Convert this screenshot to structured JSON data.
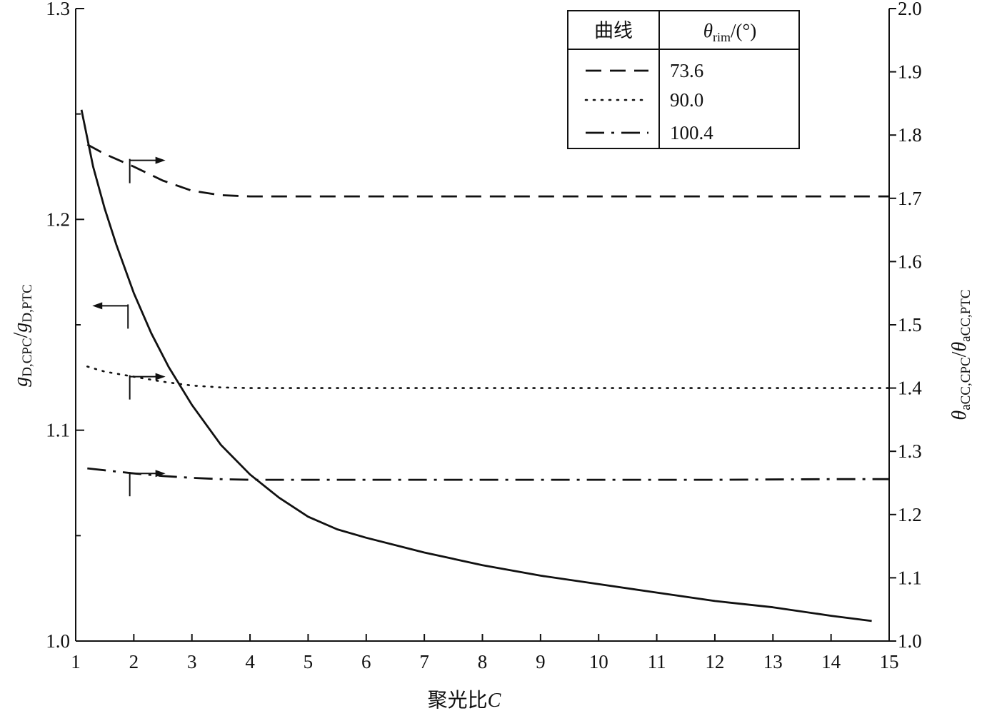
{
  "chart_data": {
    "type": "line",
    "xlabel": "聚光比C",
    "xlim": [
      1,
      15
    ],
    "x_ticks": [
      "1",
      "2",
      "3",
      "4",
      "5",
      "6",
      "7",
      "8",
      "9",
      "10",
      "11",
      "12",
      "13",
      "14",
      "15"
    ],
    "left_axis": {
      "label": "gD,CPC/gD,PTC",
      "ylim": [
        1.0,
        1.3
      ],
      "tick_labels": [
        "1.0",
        "1.1",
        "1.2",
        "1.3"
      ],
      "tick_values": [
        1.0,
        1.1,
        1.2,
        1.3
      ],
      "minor_values": [
        1.05,
        1.15,
        1.25
      ]
    },
    "right_axis": {
      "label": "θaCC,CPC/θaCC,PTC",
      "ylim": [
        1.0,
        2.0
      ],
      "tick_labels": [
        "1.0",
        "1.1",
        "1.2",
        "1.3",
        "1.4",
        "1.5",
        "1.6",
        "1.7",
        "1.8",
        "1.9",
        "2.0"
      ],
      "tick_values": [
        1.0,
        1.1,
        1.2,
        1.3,
        1.4,
        1.5,
        1.6,
        1.7,
        1.8,
        1.9,
        2.0
      ]
    },
    "legend": {
      "header_curve": "曲线",
      "header_theta": "θrim/(°)",
      "entries": [
        {
          "style": "dashed",
          "value": "73.6"
        },
        {
          "style": "dotted",
          "value": "90.0"
        },
        {
          "style": "dashdot",
          "value": "100.4"
        }
      ]
    },
    "series": [
      {
        "style": "solid",
        "axis": "left",
        "x": [
          1.1,
          1.3,
          1.5,
          1.7,
          2.0,
          2.3,
          2.6,
          3.0,
          3.5,
          4.0,
          4.5,
          5.0,
          5.5,
          6.0,
          7.0,
          8.0,
          9.0,
          10.0,
          11.0,
          12.0,
          13.0,
          14.0,
          14.7
        ],
        "y": [
          1.252,
          1.225,
          1.205,
          1.188,
          1.165,
          1.146,
          1.13,
          1.112,
          1.093,
          1.079,
          1.068,
          1.059,
          1.053,
          1.049,
          1.042,
          1.036,
          1.031,
          1.027,
          1.023,
          1.019,
          1.016,
          1.012,
          1.0095
        ]
      },
      {
        "style": "dashed",
        "axis": "right",
        "x": [
          1.2,
          1.5,
          2.0,
          2.5,
          3.0,
          3.5,
          4.0,
          5.0,
          6.0,
          8.0,
          10.0,
          12.0,
          14.0,
          15.0
        ],
        "y": [
          1.785,
          1.77,
          1.75,
          1.728,
          1.712,
          1.705,
          1.703,
          1.703,
          1.703,
          1.703,
          1.703,
          1.703,
          1.703,
          1.703
        ]
      },
      {
        "style": "dotted",
        "axis": "right",
        "x": [
          1.2,
          1.5,
          2.0,
          2.5,
          3.0,
          3.5,
          4.0,
          5.0,
          6.0,
          8.0,
          10.0,
          12.0,
          14.0,
          15.0
        ],
        "y": [
          1.434,
          1.426,
          1.418,
          1.41,
          1.404,
          1.401,
          1.4,
          1.4,
          1.4,
          1.4,
          1.4,
          1.4,
          1.4,
          1.4
        ]
      },
      {
        "style": "dashdot",
        "axis": "right",
        "x": [
          1.2,
          1.5,
          2.0,
          2.5,
          3.0,
          3.5,
          4.0,
          5.0,
          6.0,
          8.0,
          10.0,
          12.0,
          14.0,
          15.0
        ],
        "y": [
          1.273,
          1.27,
          1.265,
          1.261,
          1.258,
          1.256,
          1.255,
          1.255,
          1.255,
          1.255,
          1.255,
          1.255,
          1.256,
          1.256
        ]
      }
    ],
    "annotations": [
      {
        "type": "arrow",
        "direction": "right",
        "x": 1.93,
        "axis": "right",
        "y": 1.76
      },
      {
        "type": "arrow",
        "direction": "left",
        "x": 1.9,
        "axis": "left",
        "y": 1.159
      },
      {
        "type": "arrow",
        "direction": "right",
        "x": 1.93,
        "axis": "right",
        "y": 1.418
      },
      {
        "type": "arrow",
        "direction": "right",
        "x": 1.93,
        "axis": "right",
        "y": 1.265
      }
    ],
    "grid": false
  }
}
